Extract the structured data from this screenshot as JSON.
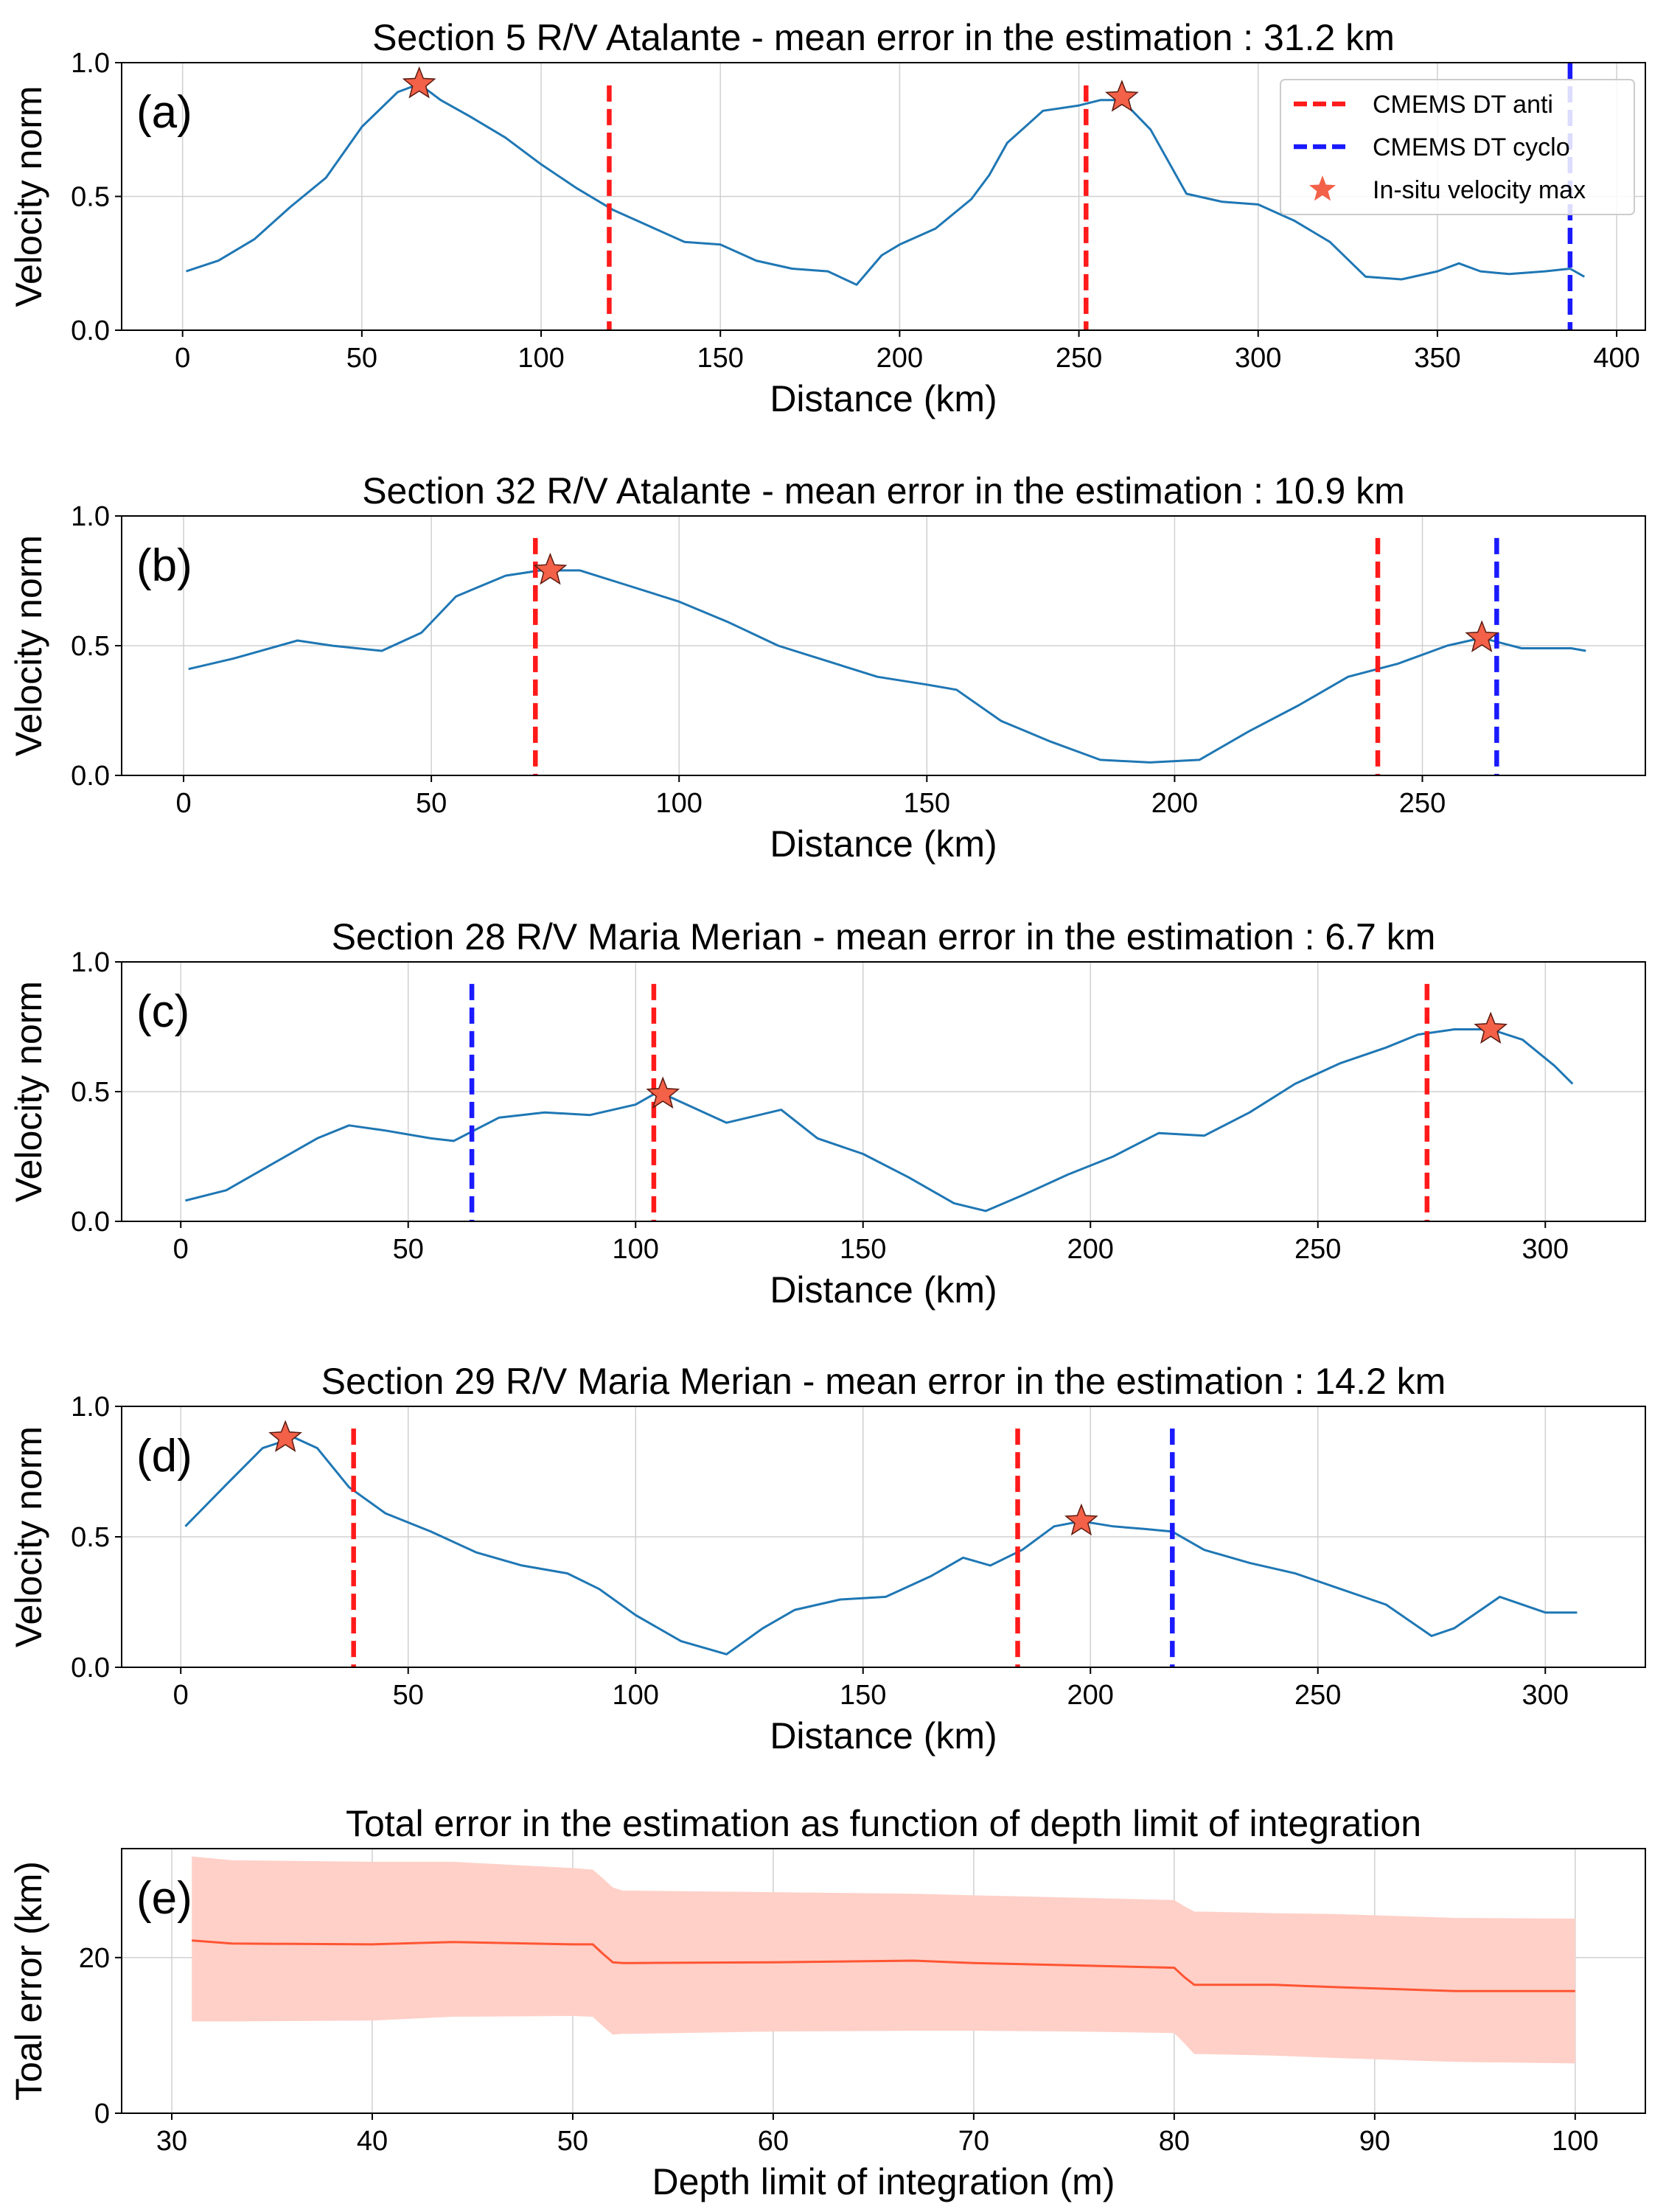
{
  "colors": {
    "curve": "#1f77b4",
    "anti": "#ff1a1a",
    "cyclo": "#1a1aff",
    "star": "#f26148",
    "error_line": "#ff5533",
    "error_band": "#ffd0c8",
    "grid": "#d0d0d0"
  },
  "chart_data": [
    {
      "id": "a",
      "type": "line",
      "panel_label": "(a)",
      "title": "Section 5 R/V Atalante - mean error in the estimation : 31.2 km",
      "xlabel": "Distance (km)",
      "ylabel": "Velocity norm",
      "xlim": [
        -17,
        408
      ],
      "ylim": [
        0,
        1
      ],
      "xticks": [
        0,
        50,
        100,
        150,
        200,
        250,
        300,
        350,
        400
      ],
      "yticks": [
        0.0,
        0.5,
        1.0
      ],
      "ytick_labels": [
        "0.0",
        "0.5",
        "1.0"
      ],
      "grid": true,
      "legend": {
        "position": "top-right",
        "entries": [
          {
            "label": "CMEMS DT anti",
            "kind": "anti"
          },
          {
            "label": "CMEMS DT cyclo",
            "kind": "cyclo"
          },
          {
            "label": "In-situ velocity max",
            "kind": "star"
          }
        ]
      },
      "series": [
        {
          "name": "Velocity norm",
          "x": [
            1,
            10,
            20,
            30,
            40,
            50,
            60,
            66,
            72,
            80,
            90,
            100,
            110,
            120,
            130,
            140,
            150,
            160,
            170,
            180,
            188,
            195,
            200,
            210,
            220,
            225,
            230,
            240,
            250,
            256,
            262,
            270,
            280,
            290,
            300,
            310,
            320,
            330,
            340,
            350,
            356,
            362,
            370,
            380,
            387,
            391
          ],
          "y": [
            0.22,
            0.26,
            0.34,
            0.46,
            0.57,
            0.76,
            0.89,
            0.92,
            0.86,
            0.8,
            0.72,
            0.62,
            0.53,
            0.45,
            0.39,
            0.33,
            0.32,
            0.26,
            0.23,
            0.22,
            0.17,
            0.28,
            0.32,
            0.38,
            0.49,
            0.58,
            0.7,
            0.82,
            0.84,
            0.86,
            0.86,
            0.75,
            0.51,
            0.48,
            0.47,
            0.41,
            0.33,
            0.2,
            0.19,
            0.22,
            0.25,
            0.22,
            0.21,
            0.22,
            0.23,
            0.2
          ]
        }
      ],
      "anti_x": [
        119,
        252
      ],
      "cyclo_x": [
        387
      ],
      "stars": [
        {
          "x": 66,
          "y": 0.92
        },
        {
          "x": 262,
          "y": 0.87
        }
      ]
    },
    {
      "id": "b",
      "type": "line",
      "panel_label": "(b)",
      "title": "Section 32 R/V Atalante - mean error in the estimation : 10.9 km",
      "xlabel": "Distance (km)",
      "ylabel": "Velocity norm",
      "xlim": [
        -12.5,
        295
      ],
      "ylim": [
        0,
        1
      ],
      "xticks": [
        0,
        50,
        100,
        150,
        200,
        250
      ],
      "yticks": [
        0.0,
        0.5,
        1.0
      ],
      "ytick_labels": [
        "0.0",
        "0.5",
        "1.0"
      ],
      "grid": true,
      "series": [
        {
          "name": "Velocity norm",
          "x": [
            1,
            10,
            23,
            30,
            40,
            48,
            55,
            65,
            72,
            80,
            90,
            100,
            110,
            120,
            130,
            140,
            150,
            156,
            165,
            175,
            185,
            195,
            205,
            215,
            225,
            235,
            245,
            255,
            262,
            270,
            280,
            283
          ],
          "y": [
            0.41,
            0.45,
            0.52,
            0.5,
            0.48,
            0.55,
            0.69,
            0.77,
            0.79,
            0.79,
            0.73,
            0.67,
            0.59,
            0.5,
            0.44,
            0.38,
            0.35,
            0.33,
            0.21,
            0.13,
            0.06,
            0.05,
            0.06,
            0.17,
            0.27,
            0.38,
            0.43,
            0.5,
            0.53,
            0.49,
            0.49,
            0.48
          ]
        }
      ],
      "anti_x": [
        71,
        241
      ],
      "cyclo_x": [
        265
      ],
      "stars": [
        {
          "x": 74,
          "y": 0.79
        },
        {
          "x": 262,
          "y": 0.53
        }
      ]
    },
    {
      "id": "c",
      "type": "line",
      "panel_label": "(c)",
      "title": "Section 28 R/V Maria Merian - mean error in the estimation : 6.7 km",
      "xlabel": "Distance (km)",
      "ylabel": "Velocity norm",
      "xlim": [
        -13,
        322
      ],
      "ylim": [
        0,
        1
      ],
      "xticks": [
        0,
        50,
        100,
        150,
        200,
        250,
        300
      ],
      "yticks": [
        0.0,
        0.5,
        1.0
      ],
      "ytick_labels": [
        "0.0",
        "0.5",
        "1.0"
      ],
      "grid": true,
      "series": [
        {
          "name": "Velocity norm",
          "x": [
            1,
            10,
            20,
            30,
            37,
            45,
            55,
            60,
            70,
            80,
            90,
            100,
            105,
            110,
            120,
            132,
            140,
            150,
            160,
            170,
            177,
            185,
            195,
            205,
            215,
            225,
            235,
            245,
            255,
            265,
            272,
            280,
            288,
            295,
            302,
            306
          ],
          "y": [
            0.08,
            0.12,
            0.22,
            0.32,
            0.37,
            0.35,
            0.32,
            0.31,
            0.4,
            0.42,
            0.41,
            0.45,
            0.5,
            0.46,
            0.38,
            0.43,
            0.32,
            0.26,
            0.17,
            0.07,
            0.04,
            0.1,
            0.18,
            0.25,
            0.34,
            0.33,
            0.42,
            0.53,
            0.61,
            0.67,
            0.72,
            0.74,
            0.74,
            0.7,
            0.6,
            0.53
          ]
        }
      ],
      "anti_x": [
        104,
        274
      ],
      "cyclo_x": [
        64
      ],
      "stars": [
        {
          "x": 106,
          "y": 0.49
        },
        {
          "x": 288,
          "y": 0.74
        }
      ]
    },
    {
      "id": "d",
      "type": "line",
      "panel_label": "(d)",
      "title": "Section 29 R/V Maria Merian - mean error in the estimation : 14.2 km",
      "xlabel": "Distance (km)",
      "ylabel": "Velocity norm",
      "xlim": [
        -13,
        322
      ],
      "ylim": [
        0,
        1
      ],
      "xticks": [
        0,
        50,
        100,
        150,
        200,
        250,
        300
      ],
      "yticks": [
        0.0,
        0.5,
        1.0
      ],
      "ytick_labels": [
        "0.0",
        "0.5",
        "1.0"
      ],
      "grid": true,
      "series": [
        {
          "name": "Velocity norm",
          "x": [
            1,
            10,
            18,
            25,
            30,
            37,
            45,
            55,
            65,
            75,
            85,
            92,
            100,
            110,
            120,
            128,
            135,
            145,
            155,
            165,
            172,
            178,
            185,
            192,
            198,
            205,
            212,
            218,
            225,
            235,
            245,
            255,
            265,
            275,
            280,
            290,
            300,
            307
          ],
          "y": [
            0.54,
            0.7,
            0.84,
            0.88,
            0.84,
            0.69,
            0.59,
            0.52,
            0.44,
            0.39,
            0.36,
            0.3,
            0.2,
            0.1,
            0.05,
            0.15,
            0.22,
            0.26,
            0.27,
            0.35,
            0.42,
            0.39,
            0.45,
            0.54,
            0.56,
            0.54,
            0.53,
            0.52,
            0.45,
            0.4,
            0.36,
            0.3,
            0.24,
            0.12,
            0.15,
            0.27,
            0.21,
            0.21
          ]
        }
      ],
      "anti_x": [
        38,
        184
      ],
      "cyclo_x": [
        218
      ],
      "stars": [
        {
          "x": 23,
          "y": 0.88
        },
        {
          "x": 198,
          "y": 0.56
        }
      ]
    },
    {
      "id": "e",
      "type": "area",
      "panel_label": "(e)",
      "title": "Total error in the estimation as function of depth limit of integration",
      "xlabel": "Depth limit of integration (m)",
      "ylabel": "Toal error (km)",
      "xlim": [
        27.5,
        103.5
      ],
      "ylim": [
        0,
        34
      ],
      "xticks": [
        30,
        40,
        50,
        60,
        70,
        80,
        90,
        100
      ],
      "yticks": [
        0,
        20
      ],
      "ytick_labels": [
        "0",
        "20"
      ],
      "grid": true,
      "series": [
        {
          "name": "Total error",
          "x": [
            31,
            33,
            40,
            44,
            50,
            51,
            51.5,
            52,
            52.5,
            53,
            60,
            67,
            70,
            75,
            80,
            80.5,
            81,
            81.5,
            85,
            88,
            94,
            100
          ],
          "y": [
            22.2,
            21.8,
            21.7,
            22.0,
            21.7,
            21.7,
            20.5,
            19.4,
            19.3,
            19.3,
            19.4,
            19.6,
            19.3,
            19.0,
            18.7,
            17.5,
            16.5,
            16.5,
            16.5,
            16.2,
            15.7,
            15.7
          ],
          "upper": [
            33,
            32.5,
            32.3,
            32.3,
            31.5,
            31.3,
            30.2,
            29.0,
            28.6,
            28.6,
            28.4,
            28.2,
            28.0,
            27.7,
            27.4,
            26.6,
            25.9,
            25.9,
            25.7,
            25.6,
            25.1,
            25.0
          ],
          "lower": [
            11.8,
            11.8,
            11.9,
            12.4,
            12.5,
            12.4,
            11.2,
            10.1,
            10.2,
            10.2,
            10.5,
            10.6,
            10.6,
            10.5,
            10.3,
            9.0,
            7.6,
            7.6,
            7.4,
            7.1,
            6.6,
            6.4
          ]
        }
      ]
    }
  ]
}
